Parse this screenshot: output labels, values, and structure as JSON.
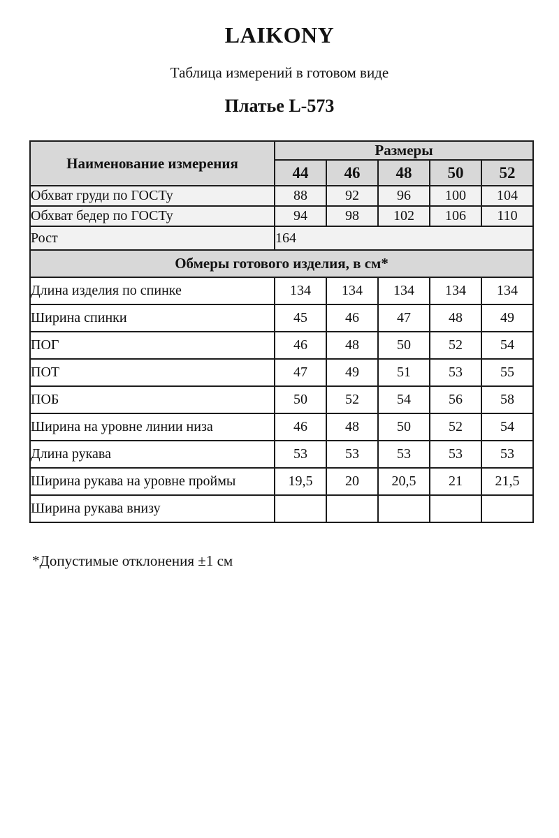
{
  "header": {
    "brand": "LAIKONY",
    "subtitle": "Таблица измерений в готовом виде",
    "product": "Платье L-573"
  },
  "table": {
    "name_header": "Наименование измерения",
    "sizes_header": "Размеры",
    "sizes": [
      "44",
      "46",
      "48",
      "50",
      "52"
    ],
    "gost_rows": [
      {
        "label": "Обхват груди по ГОСТу",
        "values": [
          "88",
          "92",
          "96",
          "100",
          "104"
        ]
      },
      {
        "label": "Обхват бедер по ГОСТу",
        "values": [
          "94",
          "98",
          "102",
          "106",
          "110"
        ]
      }
    ],
    "height_row": {
      "label": "Рост",
      "value": "164"
    },
    "section_header": "Обмеры готового изделия, в см*",
    "measure_rows": [
      {
        "label": "Длина изделия по спинке",
        "values": [
          "134",
          "134",
          "134",
          "134",
          "134"
        ]
      },
      {
        "label": "Ширина спинки",
        "values": [
          "45",
          "46",
          "47",
          "48",
          "49"
        ]
      },
      {
        "label": "ПОГ",
        "values": [
          "46",
          "48",
          "50",
          "52",
          "54"
        ]
      },
      {
        "label": "ПОТ",
        "values": [
          "47",
          "49",
          "51",
          "53",
          "55"
        ]
      },
      {
        "label": "ПОБ",
        "values": [
          "50",
          "52",
          "54",
          "56",
          "58"
        ]
      },
      {
        "label": "Ширина на уровне линии низа",
        "values": [
          "46",
          "48",
          "50",
          "52",
          "54"
        ]
      },
      {
        "label": "Длина рукава",
        "values": [
          "53",
          "53",
          "53",
          "53",
          "53"
        ]
      },
      {
        "label": "Ширина рукава на уровне проймы",
        "values": [
          "19,5",
          "20",
          "20,5",
          "21",
          "21,5"
        ]
      },
      {
        "label": "Ширина рукава внизу",
        "values": [
          "",
          "",
          "",
          "",
          ""
        ]
      }
    ]
  },
  "footnote": "*Допустимые отклонения ±1 см",
  "colors": {
    "header_bg": "#d8d8d8",
    "stripe_bg": "#f2f2f2",
    "border": "#1c1c1c",
    "text": "#121212"
  }
}
